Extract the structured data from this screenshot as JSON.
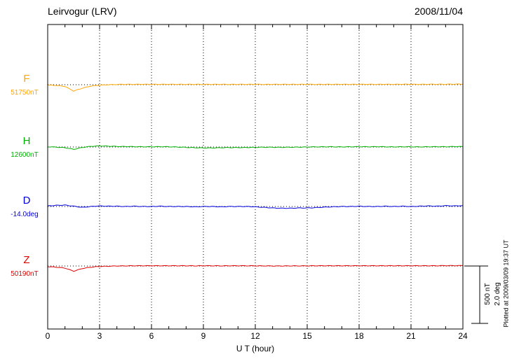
{
  "header": {
    "title": "Leirvogur (LRV)",
    "date": "2008/11/04"
  },
  "scale_bar": {
    "labels": [
      "500 nT",
      "2.0 deg"
    ]
  },
  "footer": {
    "plotted_at": "Plotted at 2009/03/09 19:37 UT"
  },
  "chart_data": {
    "type": "line",
    "title": "Leirvogur (LRV) magnetogram 2008/11/04",
    "xlabel": "U T (hour)",
    "x_range": [
      0,
      24
    ],
    "x_ticks": [
      0,
      3,
      6,
      9,
      12,
      15,
      18,
      21,
      24
    ],
    "grid": "dotted vertical lines at 3-hour intervals; dotted horizontal baseline per series",
    "legend_position": "left of each trace",
    "scale": {
      "nT": 500,
      "deg": 2.0
    },
    "x_hours": [
      0,
      0.5,
      1,
      1.5,
      2,
      2.5,
      3,
      3.5,
      4,
      4.5,
      5,
      5.5,
      6,
      6.5,
      7,
      7.5,
      8,
      8.5,
      9,
      9.5,
      10,
      10.5,
      11,
      11.5,
      12,
      12.5,
      13,
      13.5,
      14,
      14.5,
      15,
      15.5,
      16,
      16.5,
      17,
      17.5,
      18,
      18.5,
      19,
      19.5,
      20,
      20.5,
      21,
      21.5,
      22,
      22.5,
      23,
      23.5,
      24
    ],
    "series": [
      {
        "name": "F",
        "baseline_label": "51750nT",
        "baseline_value": 51750,
        "unit": "nT",
        "color": "#ffa500",
        "deviation": [
          -3,
          -6,
          -15,
          -55,
          -30,
          -12,
          -4,
          0,
          2,
          3,
          3,
          4,
          3,
          3,
          4,
          3,
          3,
          3,
          2,
          3,
          3,
          2,
          3,
          3,
          3,
          2,
          3,
          3,
          3,
          3,
          3,
          2,
          3,
          3,
          4,
          3,
          3,
          4,
          3,
          4,
          3,
          4,
          4,
          3,
          4,
          4,
          4,
          5,
          5
        ]
      },
      {
        "name": "H",
        "baseline_label": "12600nT",
        "baseline_value": 12600,
        "unit": "nT",
        "color": "#00b000",
        "deviation": [
          2,
          -1,
          -6,
          -20,
          -4,
          6,
          9,
          7,
          5,
          4,
          3,
          2,
          2,
          3,
          2,
          0,
          -3,
          -6,
          -8,
          -8,
          -6,
          -5,
          -5,
          -4,
          -3,
          -2,
          -2,
          -3,
          -2,
          -1,
          0,
          1,
          2,
          2,
          1,
          2,
          3,
          2,
          3,
          2,
          1,
          2,
          2,
          1,
          2,
          3,
          2,
          4,
          3
        ]
      },
      {
        "name": "D",
        "baseline_label": "-14.0deg",
        "baseline_value": -14.0,
        "unit": "deg",
        "color": "#0000dd",
        "deviation": [
          0.02,
          0.04,
          0.05,
          0.01,
          -0.03,
          0.0,
          0.02,
          0.01,
          0.01,
          0.0,
          0.01,
          0.0,
          0.0,
          0.01,
          0.0,
          0.0,
          0.0,
          -0.01,
          0.0,
          0.0,
          -0.01,
          0.0,
          0.0,
          0.0,
          -0.01,
          -0.03,
          -0.05,
          -0.06,
          -0.06,
          -0.05,
          -0.05,
          -0.04,
          -0.02,
          -0.01,
          0.0,
          0.0,
          0.01,
          0.0,
          0.0,
          0.01,
          0.0,
          0.01,
          0.0,
          0.01,
          0.02,
          0.01,
          0.03,
          0.02,
          0.03
        ]
      },
      {
        "name": "Z",
        "baseline_label": "50190nT",
        "baseline_value": 50190,
        "unit": "nT",
        "color": "#dd0000",
        "deviation": [
          -6,
          -10,
          -18,
          -45,
          -22,
          -10,
          -4,
          -2,
          0,
          1,
          2,
          2,
          2,
          2,
          2,
          2,
          2,
          1,
          2,
          2,
          1,
          2,
          2,
          2,
          1,
          1,
          0,
          0,
          1,
          1,
          1,
          2,
          2,
          2,
          2,
          2,
          2,
          2,
          2,
          2,
          2,
          2,
          2,
          2,
          2,
          2,
          3,
          3,
          3
        ]
      }
    ]
  }
}
